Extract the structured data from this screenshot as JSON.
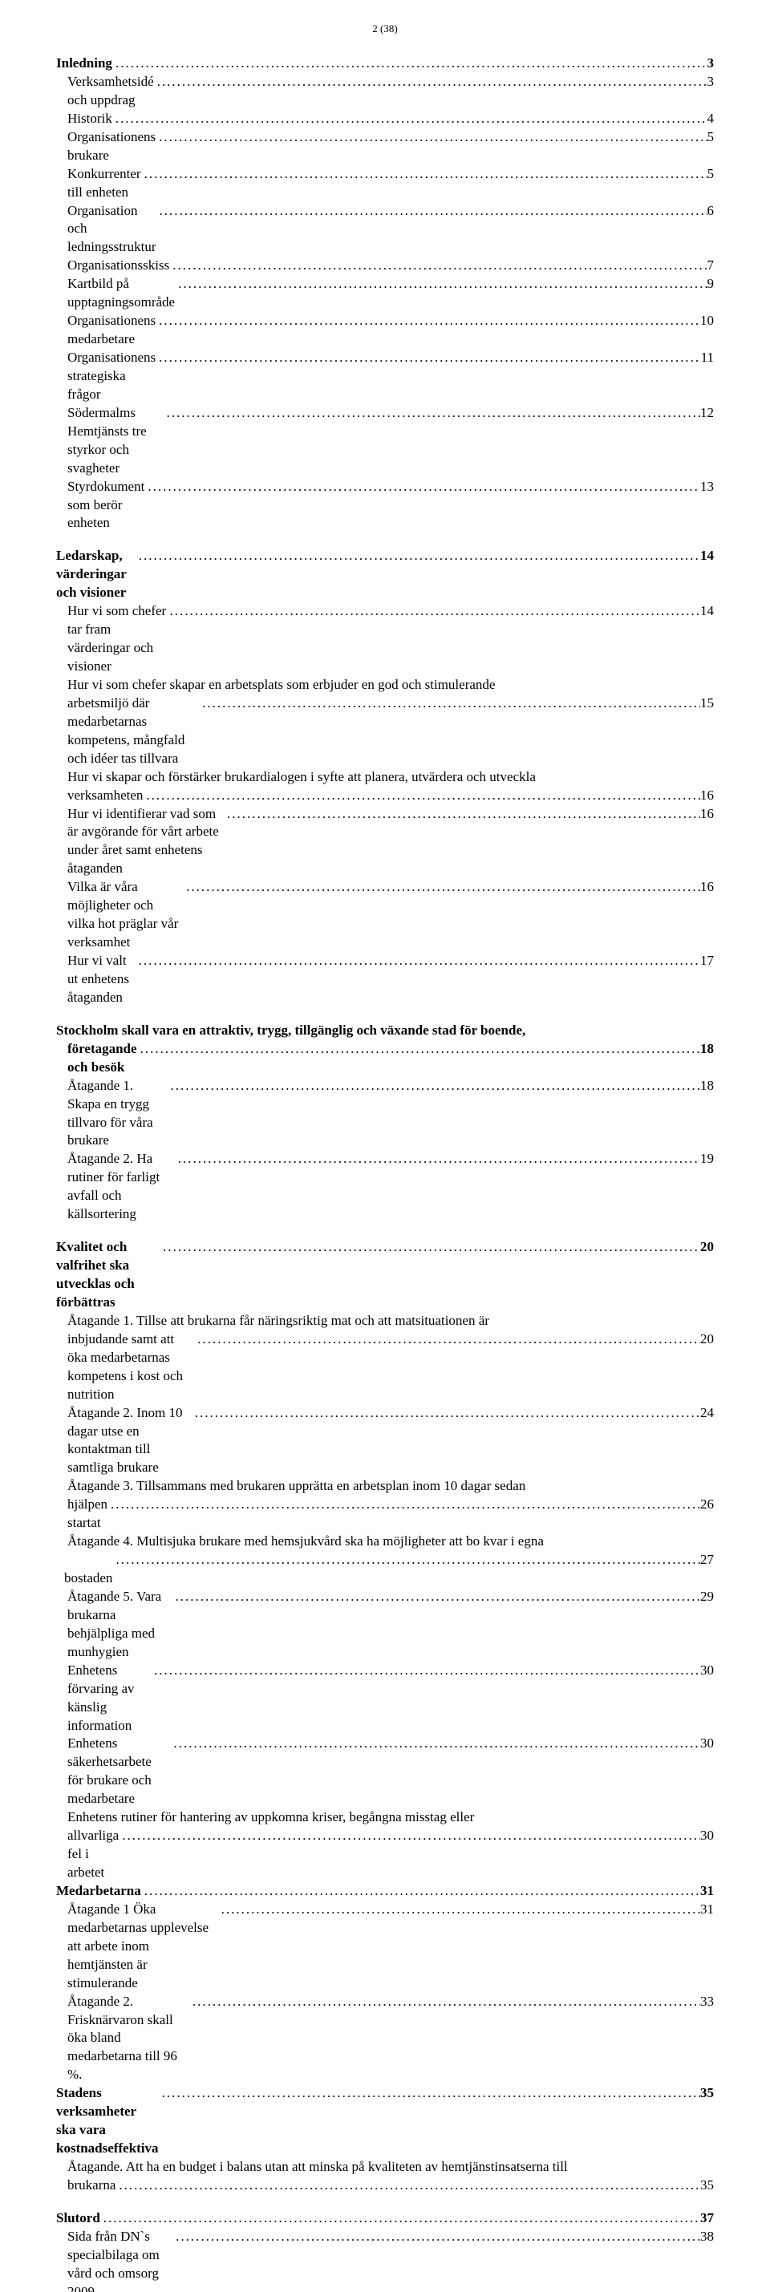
{
  "page_marker": "2 (38)",
  "entries": [
    {
      "type": "line",
      "bold": true,
      "indent": 0,
      "label": "Inledning",
      "page": "3"
    },
    {
      "type": "line",
      "bold": false,
      "indent": 1,
      "label": "Verksamhetsidé och uppdrag",
      "page": "3"
    },
    {
      "type": "line",
      "bold": false,
      "indent": 1,
      "label": "Historik",
      "page": "4"
    },
    {
      "type": "line",
      "bold": false,
      "indent": 1,
      "label": "Organisationens brukare",
      "page": "5"
    },
    {
      "type": "line",
      "bold": false,
      "indent": 1,
      "label": "Konkurrenter till enheten",
      "page": "5"
    },
    {
      "type": "line",
      "bold": false,
      "indent": 1,
      "label": "Organisation och ledningsstruktur",
      "page": "6"
    },
    {
      "type": "line",
      "bold": false,
      "indent": 1,
      "label": "Organisationsskiss",
      "page": "7"
    },
    {
      "type": "line",
      "bold": false,
      "indent": 1,
      "label": "Kartbild på upptagningsområde",
      "page": "9"
    },
    {
      "type": "line",
      "bold": false,
      "indent": 1,
      "label": "Organisationens medarbetare",
      "page": "10"
    },
    {
      "type": "line",
      "bold": false,
      "indent": 1,
      "label": "Organisationens strategiska frågor",
      "page": "11"
    },
    {
      "type": "line",
      "bold": false,
      "indent": 1,
      "label": "Södermalms Hemtjänsts tre styrkor och svagheter",
      "page": "12"
    },
    {
      "type": "line",
      "bold": false,
      "indent": 1,
      "label": "Styrdokument som berör enheten",
      "page": "13"
    },
    {
      "type": "spacer",
      "size": "md"
    },
    {
      "type": "line",
      "bold": true,
      "indent": 0,
      "label": "Ledarskap, värderingar och visioner",
      "page": "14"
    },
    {
      "type": "line",
      "bold": false,
      "indent": 1,
      "label": "Hur vi som chefer tar fram värderingar och visioner",
      "page": "14"
    },
    {
      "type": "cont",
      "indent": 1,
      "label": "Hur vi som chefer skapar en arbetsplats som erbjuder en god och stimulerande"
    },
    {
      "type": "line",
      "bold": false,
      "indent": 1,
      "label": "arbetsmiljö där medarbetarnas kompetens, mångfald och idéer tas tillvara",
      "page": "15"
    },
    {
      "type": "cont",
      "indent": 1,
      "label": "Hur vi skapar och förstärker brukardialogen i syfte att planera, utvärdera och utveckla"
    },
    {
      "type": "line",
      "bold": false,
      "indent": 1,
      "label": "verksamheten",
      "page": "16"
    },
    {
      "type": "line",
      "bold": false,
      "indent": 1,
      "label": "Hur vi identifierar vad som är avgörande för vårt arbete under året samt enhetens åtaganden",
      "page": "16"
    },
    {
      "type": "line",
      "bold": false,
      "indent": 1,
      "label": "Vilka är våra möjligheter och vilka hot präglar vår verksamhet",
      "page": "16"
    },
    {
      "type": "line",
      "bold": false,
      "indent": 1,
      "label": "Hur vi valt ut enhetens åtaganden",
      "page": "17"
    },
    {
      "type": "spacer",
      "size": "md"
    },
    {
      "type": "cont",
      "indent": 0,
      "bold": true,
      "label": "Stockholm skall vara en attraktiv, trygg, tillgänglig och växande stad för boende,"
    },
    {
      "type": "line",
      "bold": true,
      "indent": 1,
      "label": "företagande och besök",
      "page": "18"
    },
    {
      "type": "line",
      "bold": false,
      "indent": 1,
      "label": "Åtagande 1. Skapa en trygg tillvaro för våra brukare",
      "page": "18"
    },
    {
      "type": "line",
      "bold": false,
      "indent": 1,
      "label": "Åtagande 2. Ha rutiner för farligt avfall och källsortering",
      "page": "19"
    },
    {
      "type": "spacer",
      "size": "md"
    },
    {
      "type": "line",
      "bold": true,
      "indent": 0,
      "label": "Kvalitet och valfrihet ska utvecklas och förbättras",
      "page": "20"
    },
    {
      "type": "cont",
      "indent": 1,
      "label": "Åtagande 1. Tillse att brukarna får näringsriktig mat och att matsituationen är"
    },
    {
      "type": "line",
      "bold": false,
      "indent": 1,
      "label": "inbjudande samt att öka medarbetarnas kompetens i kost och nutrition",
      "page": "20"
    },
    {
      "type": "line",
      "bold": false,
      "indent": 1,
      "label": "Åtagande 2. Inom 10 dagar utse en kontaktman till samtliga brukare",
      "page": "24"
    },
    {
      "type": "cont",
      "indent": 1,
      "label": "Åtagande 3. Tillsammans med brukaren upprätta en arbetsplan inom 10 dagar sedan"
    },
    {
      "type": "line",
      "bold": false,
      "indent": 1,
      "label": "hjälpen startat",
      "page": "26"
    },
    {
      "type": "cont",
      "indent": 1,
      "label": "Åtagande 4.  Multisjuka brukare med hemsjukvård ska ha möjligheter att bo kvar i egna"
    },
    {
      "type": "line",
      "bold": false,
      "indent": 2,
      "label": " bostaden",
      "page": "27"
    },
    {
      "type": "line",
      "bold": false,
      "indent": 1,
      "label": "Åtagande 5. Vara brukarna behjälpliga med munhygien",
      "page": "29"
    },
    {
      "type": "line",
      "bold": false,
      "indent": 1,
      "label": "Enhetens förvaring av känslig information",
      "page": "30"
    },
    {
      "type": "line",
      "bold": false,
      "indent": 1,
      "label": "Enhetens säkerhetsarbete för brukare och medarbetare",
      "page": "30"
    },
    {
      "type": "cont",
      "indent": 1,
      "label": "Enhetens rutiner för hantering av uppkomna kriser, begångna misstag eller"
    },
    {
      "type": "line",
      "bold": false,
      "indent": 1,
      "label": "allvarliga fel i arbetet",
      "page": "30"
    },
    {
      "type": "line",
      "bold": true,
      "indent": 0,
      "label": "Medarbetarna",
      "page": "31"
    },
    {
      "type": "line",
      "bold": false,
      "indent": 1,
      "label": "Åtagande 1 Öka medarbetarnas upplevelse att arbete inom hemtjänsten är stimulerande",
      "page": "31"
    },
    {
      "type": "line",
      "bold": false,
      "indent": 1,
      "label": "Åtagande 2. Frisknärvaron skall öka bland medarbetarna till 96 %.",
      "page": "33"
    },
    {
      "type": "line",
      "bold": true,
      "indent": 0,
      "label": "Stadens verksamheter ska vara kostnadseffektiva",
      "page": "35"
    },
    {
      "type": "cont",
      "indent": 1,
      "label": "Åtagande. Att ha en budget i balans utan att minska på kvaliteten av hemtjänstinsatserna till"
    },
    {
      "type": "line",
      "bold": false,
      "indent": 1,
      "label": "brukarna",
      "page": "35"
    },
    {
      "type": "spacer",
      "size": "md"
    },
    {
      "type": "line",
      "bold": true,
      "indent": 0,
      "label": "Slutord",
      "page": "37"
    },
    {
      "type": "line",
      "bold": false,
      "indent": 1,
      "label": "Sida från DN`s specialbilaga om vård och omsorg 2009",
      "page": "38"
    }
  ]
}
